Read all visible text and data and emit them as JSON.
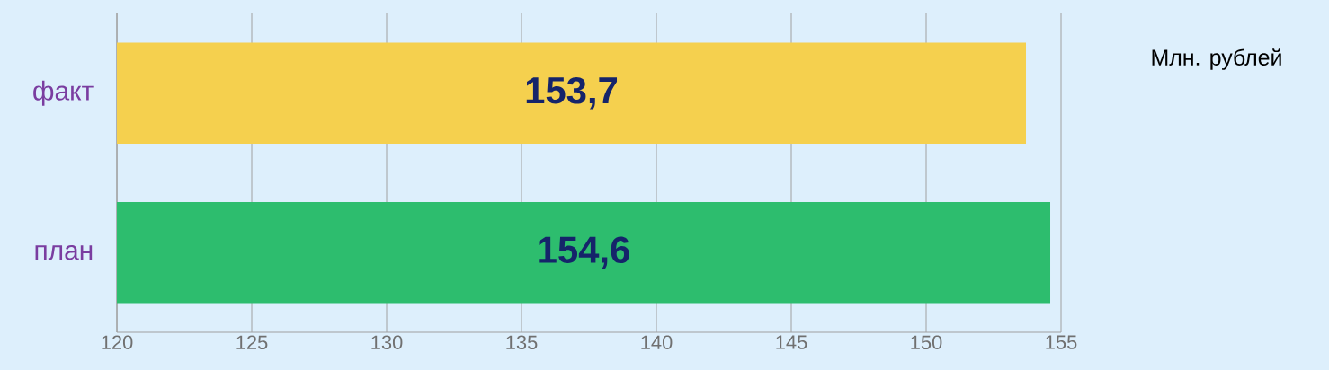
{
  "chart_data": {
    "type": "bar",
    "orientation": "horizontal",
    "categories": [
      "факт",
      "план"
    ],
    "values": [
      153.7,
      154.6
    ],
    "colors": [
      "#f5d04e",
      "#2dbd6e"
    ],
    "value_labels": [
      "153,7",
      "154,6"
    ],
    "xlim": [
      120,
      155
    ],
    "xticks": [
      120,
      125,
      130,
      135,
      140,
      145,
      150,
      155
    ],
    "grid": "x",
    "annotations": [
      "Млн. рублей"
    ]
  }
}
